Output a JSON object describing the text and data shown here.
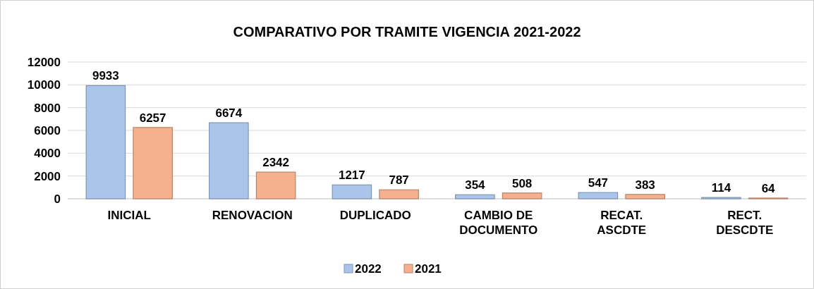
{
  "chart_data": {
    "type": "bar",
    "title": "COMPARATIVO POR TRAMITE VIGENCIA 2021-2022",
    "categories": [
      "INICIAL",
      "RENOVACION",
      "DUPLICADO",
      "CAMBIO DE DOCUMENTO",
      "RECAT. ASCDTE",
      "RECT. DESCDTE"
    ],
    "series": [
      {
        "name": "2022",
        "color": "#a9c6ea",
        "values": [
          9933,
          6674,
          1217,
          354,
          547,
          114
        ]
      },
      {
        "name": "2021",
        "color": "#f5b08e",
        "values": [
          6257,
          2342,
          787,
          508,
          383,
          64
        ]
      }
    ],
    "ylim": [
      0,
      12000
    ],
    "yticks": [
      0,
      2000,
      4000,
      6000,
      8000,
      10000,
      12000
    ],
    "grid": "y",
    "legend": "bottom",
    "data_labels": true
  }
}
